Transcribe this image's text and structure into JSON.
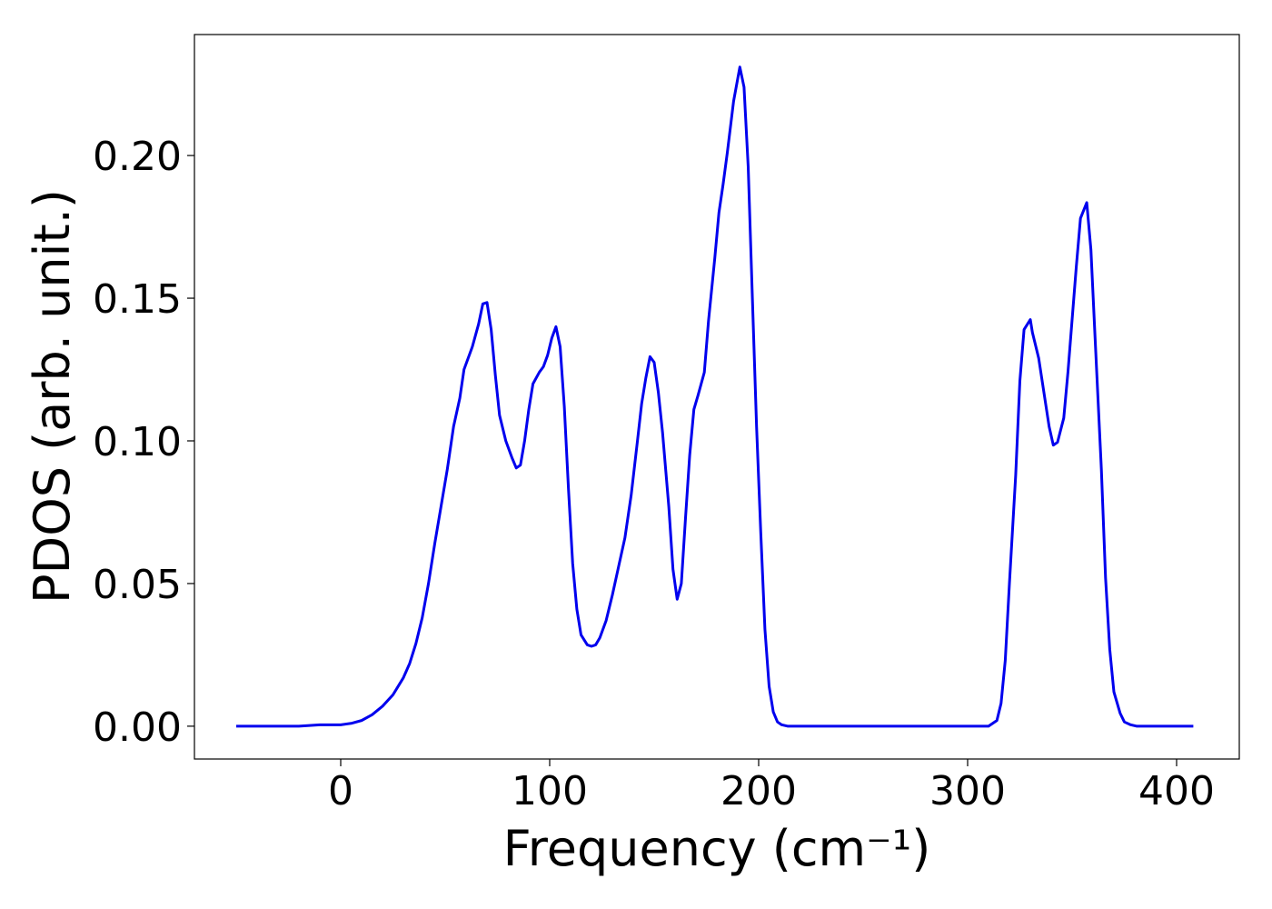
{
  "chart_data": {
    "type": "line",
    "xlabel": "Frequency (cm⁻¹)",
    "ylabel": "PDOS (arb. unit.)",
    "xlim": [
      -70,
      430
    ],
    "ylim": [
      -0.0115,
      0.2424
    ],
    "xticks": [
      0,
      100,
      200,
      300,
      400
    ],
    "yticks": [
      {
        "value": 0,
        "label": "0.00"
      },
      0.05,
      {
        "value": 0.1,
        "label": "0.10"
      },
      0.15,
      {
        "value": 0.2,
        "label": "0.20"
      }
    ],
    "grid": false,
    "x": [
      -50,
      -20,
      -10,
      0,
      5,
      10,
      15,
      20,
      25,
      30,
      33,
      36,
      39,
      42,
      45,
      48,
      51,
      54,
      57,
      59,
      63,
      66,
      68,
      70,
      72,
      74,
      76,
      79,
      82,
      84,
      86,
      88,
      90,
      92,
      95,
      97,
      99,
      101,
      103,
      105,
      107,
      109,
      111,
      113,
      115,
      118,
      120,
      122,
      124,
      127,
      130,
      133,
      136,
      139,
      142,
      144,
      146,
      148,
      150,
      152,
      154,
      157,
      159,
      161,
      163,
      165,
      167,
      169,
      171,
      174,
      176,
      179,
      181,
      183,
      185,
      188,
      191,
      193,
      195,
      197,
      199,
      201,
      203,
      205,
      207,
      209,
      211,
      214,
      230,
      300,
      310,
      314,
      316,
      318,
      320,
      323,
      325,
      327,
      330,
      331,
      334,
      339,
      341,
      343,
      346,
      348,
      352,
      354,
      357,
      359,
      361,
      364,
      366,
      368,
      370,
      373,
      375,
      378,
      381,
      408
    ],
    "series": [
      {
        "name": "PDOS",
        "color": "#0000ee",
        "values": [
          0,
          0,
          0.0005,
          0.0005,
          0.001,
          0.002,
          0.004,
          0.007,
          0.011,
          0.017,
          0.022,
          0.029,
          0.038,
          0.05,
          0.064,
          0.077,
          0.09,
          0.105,
          0.115,
          0.125,
          0.133,
          0.141,
          0.148,
          0.1485,
          0.139,
          0.123,
          0.109,
          0.1,
          0.094,
          0.0905,
          0.0915,
          0.1,
          0.111,
          0.12,
          0.124,
          0.126,
          0.13,
          0.136,
          0.14,
          0.133,
          0.112,
          0.083,
          0.057,
          0.041,
          0.032,
          0.0285,
          0.028,
          0.0285,
          0.031,
          0.037,
          0.046,
          0.056,
          0.066,
          0.081,
          0.1,
          0.113,
          0.122,
          0.1295,
          0.1275,
          0.117,
          0.103,
          0.077,
          0.055,
          0.0445,
          0.05,
          0.073,
          0.095,
          0.111,
          0.116,
          0.124,
          0.142,
          0.164,
          0.18,
          0.19,
          0.201,
          0.219,
          0.231,
          0.224,
          0.196,
          0.15,
          0.105,
          0.068,
          0.034,
          0.014,
          0.005,
          0.0015,
          0.0005,
          0,
          0,
          0,
          0,
          0.002,
          0.008,
          0.023,
          0.05,
          0.088,
          0.121,
          0.139,
          0.1425,
          0.138,
          0.129,
          0.105,
          0.0985,
          0.0995,
          0.108,
          0.124,
          0.161,
          0.178,
          0.1835,
          0.167,
          0.136,
          0.09,
          0.052,
          0.027,
          0.012,
          0.0045,
          0.0015,
          0.0005,
          0,
          0
        ]
      }
    ]
  }
}
